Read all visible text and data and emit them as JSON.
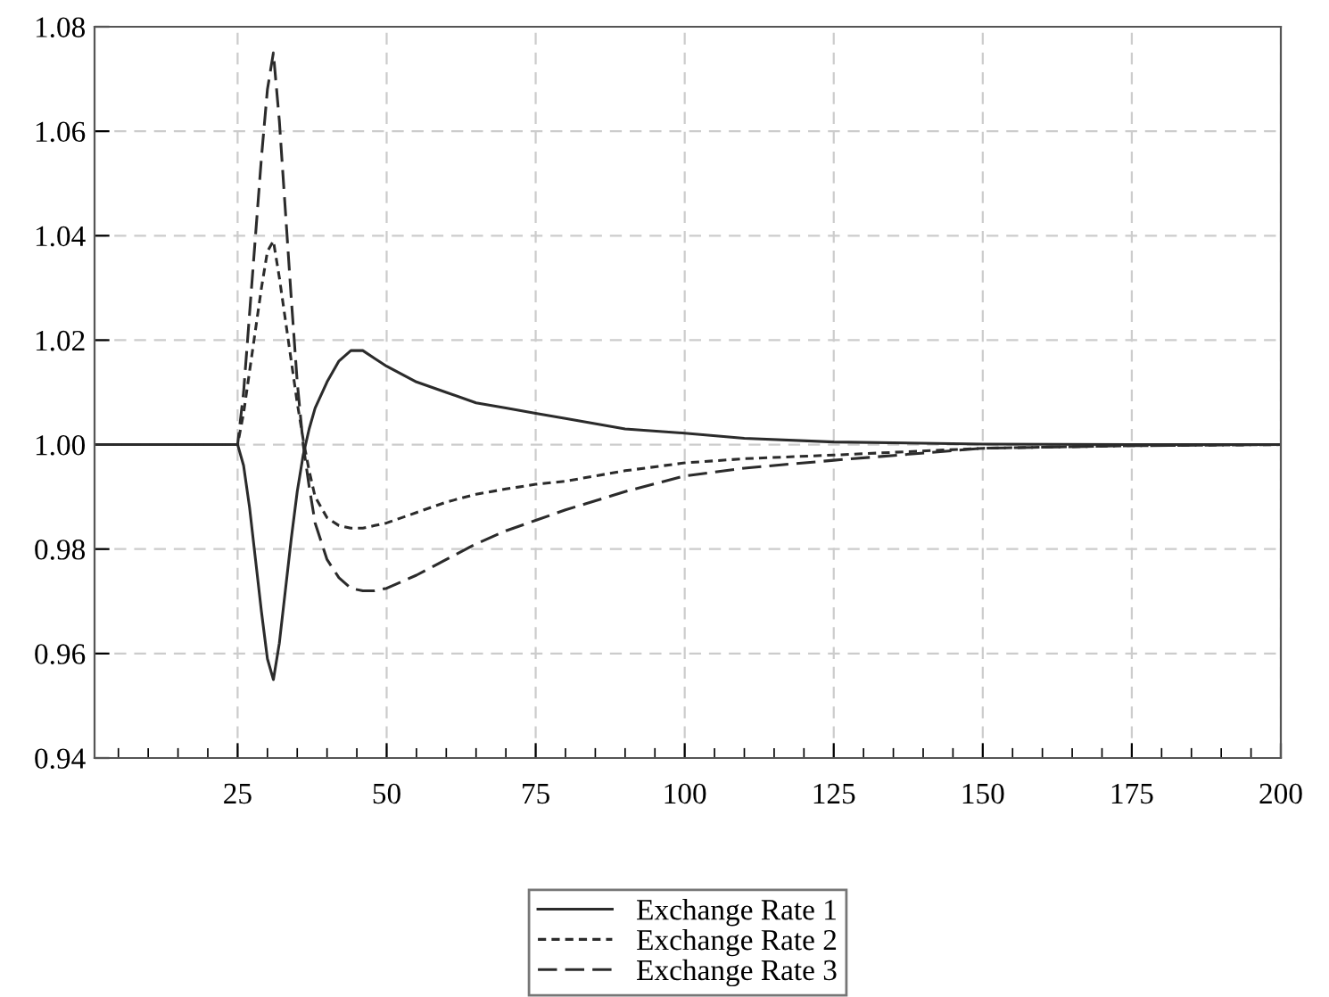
{
  "chart_data": {
    "type": "line",
    "x": [
      1,
      25,
      26,
      27,
      28,
      29,
      30,
      31,
      32,
      33,
      34,
      35,
      36,
      37,
      38,
      40,
      42,
      44,
      46,
      48,
      50,
      55,
      60,
      65,
      70,
      75,
      80,
      90,
      100,
      110,
      125,
      150,
      175,
      200
    ],
    "series": [
      {
        "name": "Exchange Rate 1",
        "color": "#2b2b2b",
        "line_style": "solid",
        "values": [
          1,
          1,
          0.996,
          0.988,
          0.978,
          0.968,
          0.959,
          0.955,
          0.962,
          0.972,
          0.982,
          0.991,
          0.998,
          1.003,
          1.007,
          1.012,
          1.016,
          1.018,
          1.018,
          1.0165,
          1.015,
          1.012,
          1.01,
          1.008,
          1.007,
          1.006,
          1.005,
          1.003,
          1.0022,
          1.0012,
          1.0005,
          1.0001,
          1.0,
          1.0
        ]
      },
      {
        "name": "Exchange Rate 2",
        "color": "#2b2b2b",
        "line_style": "dotted",
        "values": [
          1,
          1,
          1.006,
          1.014,
          1.022,
          1.03,
          1.037,
          1.039,
          1.032,
          1.024,
          1.016,
          1.008,
          1.001,
          0.995,
          0.99,
          0.986,
          0.9845,
          0.984,
          0.984,
          0.9845,
          0.985,
          0.987,
          0.989,
          0.9905,
          0.9915,
          0.9924,
          0.993,
          0.995,
          0.9965,
          0.9973,
          0.998,
          0.9993,
          0.9998,
          1.0
        ]
      },
      {
        "name": "Exchange Rate 3",
        "color": "#2b2b2b",
        "line_style": "dashed",
        "values": [
          1,
          1,
          1.01,
          1.025,
          1.04,
          1.055,
          1.068,
          1.075,
          1.062,
          1.045,
          1.028,
          1.012,
          1.0,
          0.992,
          0.985,
          0.978,
          0.9745,
          0.9725,
          0.972,
          0.972,
          0.9725,
          0.975,
          0.978,
          0.981,
          0.9835,
          0.9855,
          0.9875,
          0.991,
          0.994,
          0.9955,
          0.997,
          0.9993,
          0.9998,
          1.0
        ]
      }
    ],
    "xlim": [
      1,
      200
    ],
    "xticks": [
      25,
      50,
      75,
      100,
      125,
      150,
      175,
      200
    ],
    "ylim": [
      0.94,
      1.08
    ],
    "yticks": [
      {
        "value": 0.94,
        "label": "0.94"
      },
      {
        "value": 0.96,
        "label": "0.96"
      },
      {
        "value": 0.98,
        "label": "0.98"
      },
      {
        "value": 1.0,
        "label": "1.00"
      },
      {
        "value": 1.02,
        "label": "1.02"
      },
      {
        "value": 1.04,
        "label": "1.04"
      },
      {
        "value": 1.06,
        "label": "1.06"
      },
      {
        "value": 1.08,
        "label": "1.08"
      }
    ],
    "grid": true,
    "legend": "bottom",
    "marker": "none"
  }
}
